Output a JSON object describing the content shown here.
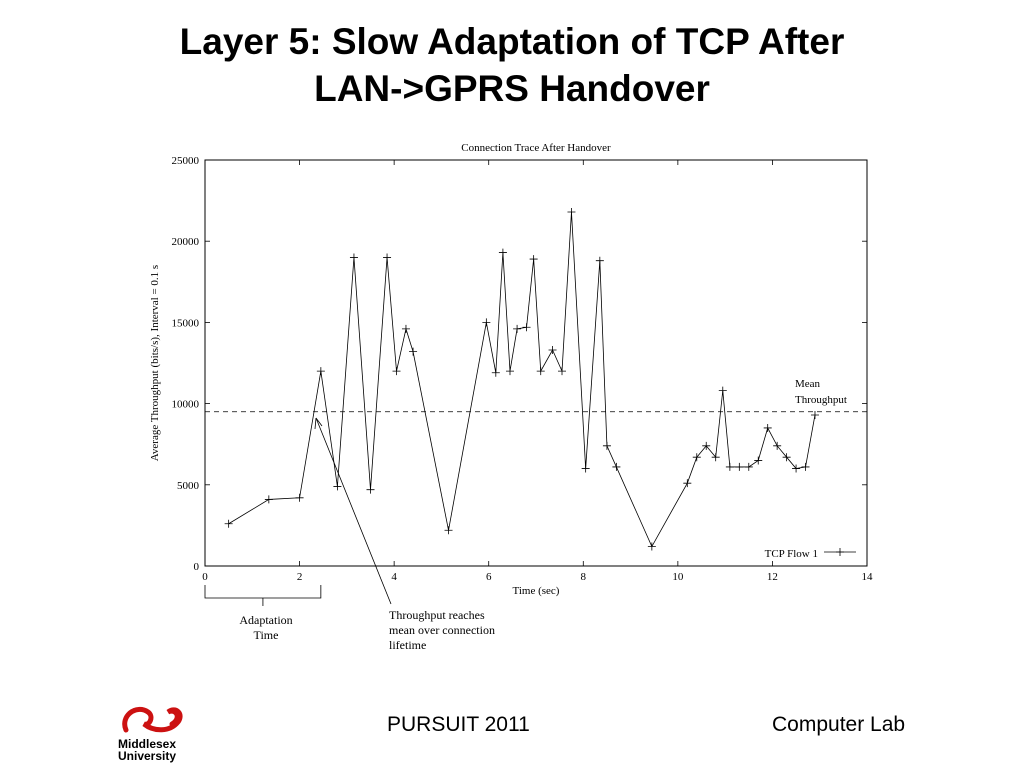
{
  "slide": {
    "title_line1": "Layer 5: Slow Adaptation of TCP After",
    "title_line2": "LAN->GPRS Handover"
  },
  "footer": {
    "center": "PURSUIT 2011",
    "right": "Computer Lab",
    "logo_line1": "Middlesex",
    "logo_line2": "University",
    "logo_color": "#cc1111"
  },
  "chart_data": {
    "type": "line",
    "title": "Connection Trace After Handover",
    "xlabel": "Time (sec)",
    "ylabel": "Average Throughput (bits/s), Interval = 0.1 s",
    "xlim": [
      0,
      14
    ],
    "ylim": [
      0,
      25000
    ],
    "x_ticks": [
      0,
      2,
      4,
      6,
      8,
      10,
      12,
      14
    ],
    "y_ticks": [
      0,
      5000,
      10000,
      15000,
      20000,
      25000
    ],
    "grid": false,
    "legend": "bottom-right",
    "series": [
      {
        "name": "TCP Flow 1",
        "marker": "+",
        "x": [
          0.5,
          1.35,
          2.0,
          2.45,
          2.8,
          3.15,
          3.5,
          3.85,
          4.05,
          4.25,
          4.4,
          5.15,
          5.95,
          6.15,
          6.3,
          6.45,
          6.6,
          6.8,
          6.95,
          7.1,
          7.35,
          7.55,
          7.75,
          8.05,
          8.35,
          8.5,
          8.7,
          9.45,
          10.2,
          10.4,
          10.6,
          10.8,
          10.95,
          11.1,
          11.3,
          11.5,
          11.7,
          11.9,
          12.1,
          12.3,
          12.5,
          12.7,
          12.9
        ],
        "values": [
          2600,
          4100,
          4200,
          12000,
          4900,
          19000,
          4700,
          19000,
          12000,
          14600,
          13200,
          2200,
          15000,
          11900,
          19300,
          12000,
          14600,
          14700,
          18900,
          12000,
          13300,
          12000,
          21800,
          6000,
          18800,
          7400,
          6100,
          1200,
          5100,
          6700,
          7400,
          6700,
          10800,
          6100,
          6100,
          6100,
          6500,
          8500,
          7400,
          6700,
          6000,
          6100,
          9300
        ]
      }
    ],
    "reference_line": {
      "y": 9500,
      "style": "dashed",
      "label_line1": "Mean",
      "label_line2": "Throughput"
    },
    "annotations": {
      "adaptation_line1": "Adaptation",
      "adaptation_line2": "Time",
      "adaptation_x_range": [
        0,
        2.45
      ],
      "arrow_line1": "Throughput reaches",
      "arrow_line2": "mean over connection",
      "arrow_line3": "lifetime"
    }
  }
}
